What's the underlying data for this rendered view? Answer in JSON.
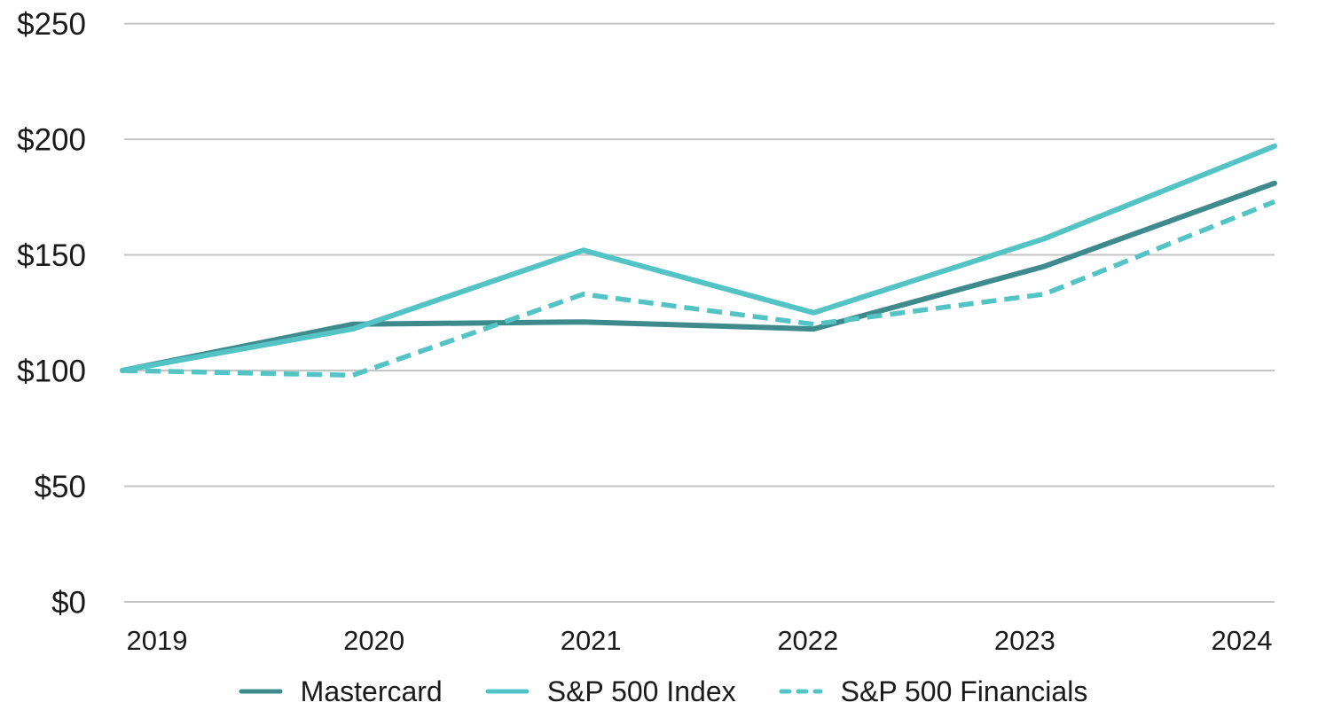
{
  "chart_data": {
    "type": "line",
    "x": [
      "2019",
      "2020",
      "2021",
      "2022",
      "2023",
      "2024"
    ],
    "series": [
      {
        "name": "Mastercard",
        "color": "#3F8A8C",
        "line_style": "solid",
        "values": [
          100,
          120,
          121,
          118,
          145,
          181
        ]
      },
      {
        "name": "S&P 500 Index",
        "color": "#54C3C6",
        "line_style": "solid",
        "values": [
          100,
          118,
          152,
          125,
          157,
          197
        ]
      },
      {
        "name": "S&P 500 Financials",
        "color": "#54C3C6",
        "line_style": "dashed",
        "values": [
          100,
          98,
          133,
          120,
          133,
          173
        ]
      }
    ],
    "y_axis": {
      "min": 0,
      "max": 250,
      "prefix": "$",
      "ticks": [
        {
          "value": 0,
          "label": "$0"
        },
        {
          "value": 50,
          "label": "$50"
        },
        {
          "value": 100,
          "label": "$100"
        },
        {
          "value": 150,
          "label": "$150"
        },
        {
          "value": 200,
          "label": "$200"
        },
        {
          "value": 250,
          "label": "$250"
        }
      ]
    },
    "grid": "horizontal",
    "legend_position": "bottom"
  },
  "colors": {
    "background": "#FFFFFF",
    "grid": "#C4C4C4",
    "text": "#1A1A1A",
    "accent_dark_teal": "#3F8A8C",
    "accent_light_teal": "#54C3C6"
  }
}
